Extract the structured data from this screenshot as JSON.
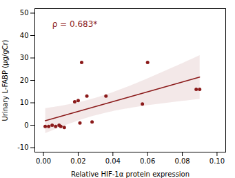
{
  "chart_data": {
    "type": "scatter",
    "x": [
      0.001,
      0.003,
      0.005,
      0.007,
      0.009,
      0.01,
      0.012,
      0.018,
      0.02,
      0.021,
      0.022,
      0.025,
      0.028,
      0.036,
      0.057,
      0.06,
      0.088,
      0.09
    ],
    "values": [
      -0.5,
      -0.5,
      0.0,
      -0.5,
      0.0,
      -0.5,
      -1.0,
      10.5,
      11.0,
      1.0,
      28.0,
      13.0,
      1.5,
      13.0,
      9.5,
      28.0,
      16.0,
      16.0
    ],
    "color": "#8B1A1A",
    "annotations": [
      {
        "text": "ρ = 0.683*",
        "x": 0.005,
        "y": 44
      }
    ],
    "xlabel": "Relative HIF-1α protein expression",
    "ylabel": "Urinary L-FABP (μg/gCr)",
    "xlim": [
      -0.005,
      0.105
    ],
    "ylim": [
      -12,
      52
    ],
    "xticks": [
      {
        "value": 0.0,
        "label": "0.00"
      },
      0.02,
      0.04,
      0.06,
      0.08,
      {
        "value": 0.1,
        "label": "0.10"
      }
    ],
    "yticks": [
      -10,
      0,
      10,
      20,
      30,
      40,
      50
    ],
    "grid": false
  }
}
